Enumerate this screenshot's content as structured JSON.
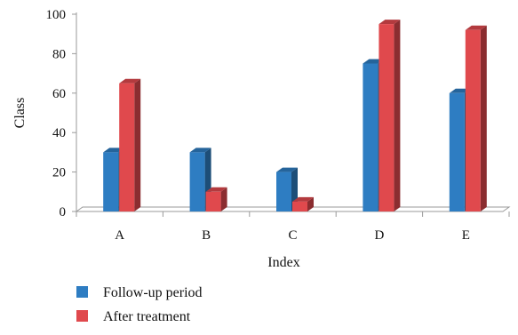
{
  "chart_data": {
    "type": "bar",
    "style": "3d-clustered-column",
    "categories": [
      "A",
      "B",
      "C",
      "D",
      "E"
    ],
    "series": [
      {
        "name": "Follow-up period",
        "values": [
          30,
          30,
          20,
          75,
          60
        ],
        "color": "#2e7dc2"
      },
      {
        "name": "After treatment",
        "values": [
          65,
          10,
          5,
          95,
          92
        ],
        "color": "#e0494d"
      }
    ],
    "title": "",
    "xlabel": "Index",
    "ylabel": "Class",
    "ylim": [
      0,
      100
    ],
    "yticks": [
      0,
      20,
      40,
      60,
      80,
      100
    ],
    "grid": false,
    "legend_position": "bottom-left"
  }
}
